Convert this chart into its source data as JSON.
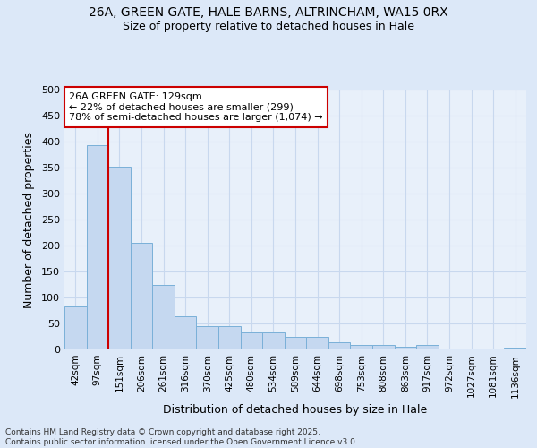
{
  "title_line1": "26A, GREEN GATE, HALE BARNS, ALTRINCHAM, WA15 0RX",
  "title_line2": "Size of property relative to detached houses in Hale",
  "xlabel": "Distribution of detached houses by size in Hale",
  "ylabel": "Number of detached properties",
  "bar_labels": [
    "42sqm",
    "97sqm",
    "151sqm",
    "206sqm",
    "261sqm",
    "316sqm",
    "370sqm",
    "425sqm",
    "480sqm",
    "534sqm",
    "589sqm",
    "644sqm",
    "698sqm",
    "753sqm",
    "808sqm",
    "863sqm",
    "917sqm",
    "972sqm",
    "1027sqm",
    "1081sqm",
    "1136sqm"
  ],
  "bar_values": [
    82,
    393,
    352,
    205,
    125,
    64,
    44,
    44,
    32,
    32,
    25,
    25,
    14,
    8,
    8,
    6,
    9,
    2,
    2,
    2,
    4
  ],
  "bar_color": "#c5d8f0",
  "bar_edge_color": "#7ab0d8",
  "vline_x": 1.5,
  "vline_color": "#cc0000",
  "annotation_text": "26A GREEN GATE: 129sqm\n← 22% of detached houses are smaller (299)\n78% of semi-detached houses are larger (1,074) →",
  "annotation_box_color": "#ffffff",
  "annotation_box_edge": "#cc0000",
  "ylim": [
    0,
    500
  ],
  "yticks": [
    0,
    50,
    100,
    150,
    200,
    250,
    300,
    350,
    400,
    450,
    500
  ],
  "grid_color": "#c8d8ee",
  "background_color": "#dce8f8",
  "plot_bg_color": "#e8f0fa",
  "footer_text": "Contains HM Land Registry data © Crown copyright and database right 2025.\nContains public sector information licensed under the Open Government Licence v3.0."
}
